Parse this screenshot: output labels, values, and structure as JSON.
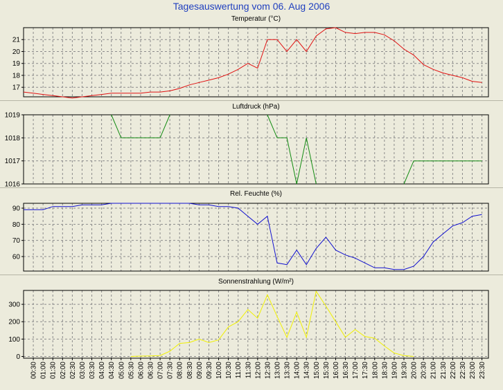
{
  "title": "Tagesauswertung vom 06. Aug 2006",
  "chart_data": [
    {
      "type": "line",
      "title": "Temperatur (°C)",
      "color": "#e01010",
      "ylim": [
        16.2,
        22.0
      ],
      "yticks": [
        17,
        18,
        19,
        20,
        21
      ],
      "x": [
        "00:00",
        "00:30",
        "01:00",
        "01:30",
        "02:00",
        "02:30",
        "03:00",
        "03:30",
        "04:00",
        "04:30",
        "05:00",
        "05:30",
        "06:00",
        "06:30",
        "07:00",
        "07:30",
        "08:00",
        "08:30",
        "09:00",
        "09:30",
        "10:00",
        "10:30",
        "11:00",
        "11:30",
        "12:00",
        "12:30",
        "13:00",
        "13:30",
        "14:00",
        "14:30",
        "15:00",
        "15:30",
        "16:00",
        "16:30",
        "17:00",
        "17:30",
        "18:00",
        "18:30",
        "19:00",
        "19:30",
        "20:00",
        "20:30",
        "21:00",
        "21:30",
        "22:00",
        "22:30",
        "23:00",
        "23:30"
      ],
      "values": [
        16.6,
        16.5,
        16.4,
        16.3,
        16.2,
        16.1,
        16.2,
        16.3,
        16.4,
        16.5,
        16.5,
        16.5,
        16.5,
        16.6,
        16.6,
        16.7,
        16.9,
        17.2,
        17.4,
        17.6,
        17.8,
        18.1,
        18.5,
        19.0,
        18.6,
        21.0,
        21.0,
        20.0,
        21.0,
        20.0,
        21.3,
        21.9,
        22.0,
        21.6,
        21.5,
        21.6,
        21.6,
        21.4,
        20.9,
        20.2,
        19.7,
        18.9,
        18.5,
        18.2,
        18.0,
        17.8,
        17.5,
        17.4
      ]
    },
    {
      "type": "line",
      "title": "Luftdruck (hPa)",
      "color": "#108a10",
      "ylim": [
        1016,
        1019
      ],
      "yticks": [
        1016,
        1017,
        1018,
        1019
      ],
      "x": [
        "04:30",
        "05:30",
        "06:30",
        "07:30",
        "12:30",
        "13:30",
        "14:30",
        "20:30",
        "23:30"
      ],
      "segments": [
        {
          "x": [
            "04:30",
            "05:00",
            "06:30",
            "07:00",
            "07:30"
          ],
          "values": [
            1019,
            1018,
            1018,
            1018,
            1019
          ]
        },
        {
          "x": [
            "12:30",
            "13:00",
            "13:30",
            "14:00",
            "14:30",
            "15:00"
          ],
          "values": [
            1019,
            1018,
            1018,
            1016,
            1018,
            1016
          ]
        },
        {
          "x": [
            "19:30",
            "20:00",
            "20:30",
            "21:00",
            "21:30",
            "22:00",
            "22:30",
            "23:00",
            "23:30"
          ],
          "values": [
            1016,
            1017,
            1017,
            1017,
            1017,
            1017,
            1017,
            1017,
            1017
          ]
        }
      ]
    },
    {
      "type": "line",
      "title": "Rel. Feuchte (%)",
      "color": "#1010d0",
      "ylim": [
        51,
        93
      ],
      "yticks": [
        60,
        70,
        80,
        90
      ],
      "x": [
        "00:00",
        "00:30",
        "01:00",
        "01:30",
        "02:00",
        "02:30",
        "03:00",
        "03:30",
        "04:00",
        "04:30",
        "05:00",
        "05:30",
        "06:00",
        "06:30",
        "07:00",
        "07:30",
        "08:00",
        "08:30",
        "09:00",
        "09:30",
        "10:00",
        "10:30",
        "11:00",
        "11:30",
        "12:00",
        "12:30",
        "13:00",
        "13:30",
        "14:00",
        "14:30",
        "15:00",
        "15:30",
        "16:00",
        "16:30",
        "17:00",
        "17:30",
        "18:00",
        "18:30",
        "19:00",
        "19:30",
        "20:00",
        "20:30",
        "21:00",
        "21:30",
        "22:00",
        "22:30",
        "23:00",
        "23:30"
      ],
      "values": [
        89,
        89,
        89,
        91,
        91,
        91,
        92,
        92,
        92,
        93,
        93,
        93,
        93,
        93,
        93,
        93,
        93,
        93,
        92,
        92,
        91,
        91,
        90,
        85,
        80,
        85,
        56,
        55,
        64,
        55,
        65,
        72,
        64,
        61,
        59,
        56,
        53,
        53,
        52,
        52,
        54,
        60,
        69,
        74,
        79,
        81,
        85,
        86
      ]
    },
    {
      "type": "line",
      "title": "Sonnenstrahlung (W/m²)",
      "color": "#f0f000",
      "ylim": [
        -10,
        380
      ],
      "yticks": [
        0,
        100,
        200,
        300
      ],
      "xticks": [
        "00:30",
        "01:00",
        "01:30",
        "02:00",
        "02:30",
        "03:00",
        "03:30",
        "04:00",
        "04:30",
        "05:00",
        "05:30",
        "06:00",
        "06:30",
        "07:00",
        "07:30",
        "08:00",
        "08:30",
        "09:00",
        "09:30",
        "10:00",
        "10:30",
        "11:00",
        "11:30",
        "12:00",
        "12:30",
        "13:00",
        "13:30",
        "14:00",
        "14:30",
        "15:00",
        "15:30",
        "16:00",
        "16:30",
        "17:00",
        "17:30",
        "18:00",
        "18:30",
        "19:00",
        "19:30",
        "20:00",
        "20:30",
        "21:00",
        "21:30",
        "22:00",
        "22:30",
        "23:00",
        "23:30"
      ],
      "x": [
        "05:30",
        "06:00",
        "06:30",
        "07:00",
        "07:30",
        "08:00",
        "08:30",
        "09:00",
        "09:30",
        "10:00",
        "10:30",
        "11:00",
        "11:30",
        "12:00",
        "12:30",
        "13:00",
        "13:30",
        "14:00",
        "14:30",
        "15:00",
        "15:30",
        "16:00",
        "16:30",
        "17:00",
        "17:30",
        "18:00",
        "18:30",
        "19:00",
        "19:30",
        "20:00"
      ],
      "values": [
        0,
        2,
        3,
        5,
        30,
        75,
        80,
        100,
        80,
        95,
        170,
        200,
        270,
        220,
        355,
        230,
        110,
        255,
        110,
        375,
        290,
        200,
        110,
        155,
        115,
        105,
        60,
        20,
        5,
        0
      ]
    }
  ]
}
